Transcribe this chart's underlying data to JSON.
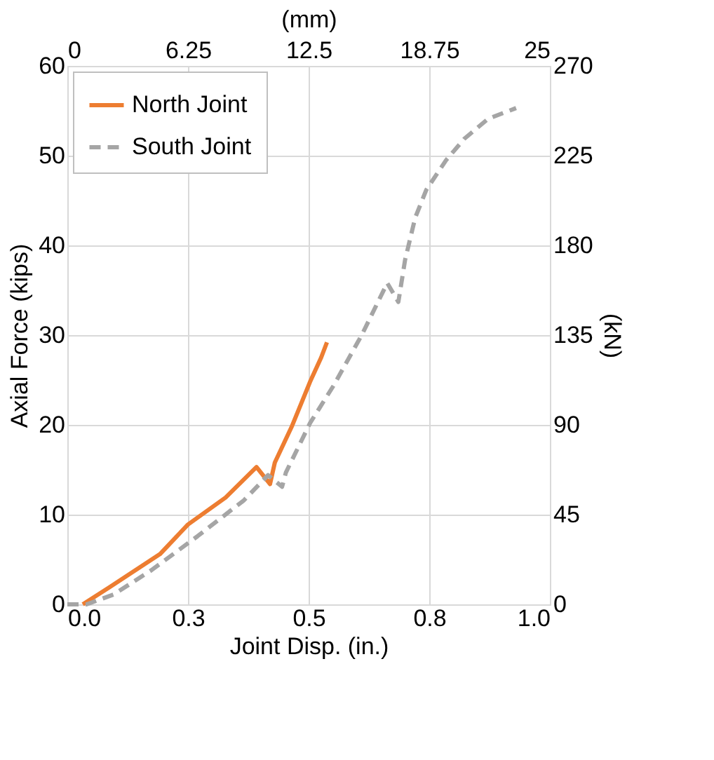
{
  "chart_data": {
    "type": "line",
    "xlabel": "Joint Disp. (in.)",
    "ylabel": "Axial Force (kips)",
    "y2label": "(kN)",
    "x2label": "(mm)",
    "xlim": [
      0,
      1
    ],
    "xticks": [
      {
        "value": 0,
        "label": "0.0"
      },
      {
        "value": 0.25,
        "label": "0.3"
      },
      {
        "value": 0.5,
        "label": "0.5"
      },
      {
        "value": 0.75,
        "label": "0.8"
      },
      {
        "value": 1,
        "label": "1.0"
      }
    ],
    "ylim": [
      0,
      60
    ],
    "yticks": [
      0,
      10,
      20,
      30,
      40,
      50,
      60
    ],
    "x2lim": [
      0,
      25
    ],
    "x2ticks": [
      0,
      6.25,
      12.5,
      18.75,
      25
    ],
    "y2lim": [
      0,
      270
    ],
    "y2ticks": [
      0,
      45,
      90,
      135,
      180,
      225,
      270
    ],
    "grid": true,
    "legend": "top left",
    "marker": "none",
    "series": [
      {
        "name": "North Joint",
        "color": "#ed7d31",
        "line_style": "solid",
        "x": [
          0.032,
          0.087,
          0.192,
          0.25,
          0.328,
          0.392,
          0.42,
          0.43,
          0.465,
          0.503,
          0.526,
          0.538
        ],
        "values": [
          0,
          1.9,
          5.6,
          8.9,
          11.9,
          15.3,
          13.4,
          15.8,
          19.8,
          24.8,
          27.5,
          29.2
        ]
      },
      {
        "name": "South Joint",
        "color": "#a5a5a5",
        "line_style": "dashed",
        "x": [
          0,
          0.04,
          0.096,
          0.174,
          0.27,
          0.366,
          0.416,
          0.445,
          0.453,
          0.503,
          0.552,
          0.61,
          0.663,
          0.686,
          0.7,
          0.721,
          0.744,
          0.785,
          0.823,
          0.872,
          0.93
        ],
        "values": [
          0,
          0,
          1.1,
          3.8,
          7.6,
          11.6,
          14.4,
          13.1,
          14.7,
          20.2,
          24.4,
          30,
          35.8,
          33.7,
          38.4,
          43.1,
          46.2,
          49.5,
          51.9,
          54.1,
          55.3
        ]
      }
    ]
  }
}
